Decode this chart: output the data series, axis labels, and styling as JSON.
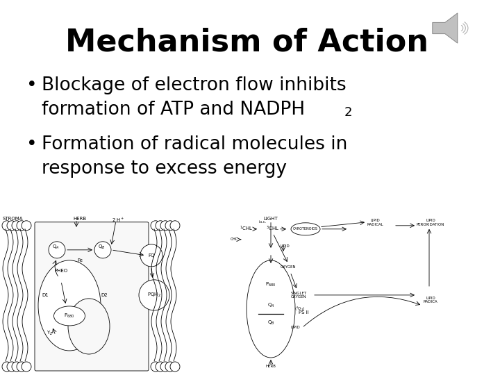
{
  "title": "Mechanism of Action",
  "bullet1_line1": "Blockage of electron flow inhibits",
  "bullet1_line2": "formation of ATP and NADPH",
  "bullet1_sub": "2",
  "bullet2_line1": "Formation of radical molecules in",
  "bullet2_line2": "response to excess energy",
  "bg_color": "#ffffff",
  "text_color": "#000000",
  "title_fontsize": 32,
  "bullet_fontsize": 19,
  "sub_fontsize": 13
}
